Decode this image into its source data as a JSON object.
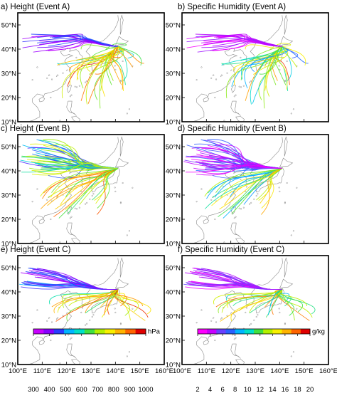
{
  "panels": [
    {
      "id": "a",
      "title": "a) Height (Event A)",
      "variable": "height",
      "event": "A"
    },
    {
      "id": "b",
      "title": "b) Specific Humidity (Event A)",
      "variable": "humidity",
      "event": "A"
    },
    {
      "id": "c",
      "title": "c) Height (Event B)",
      "variable": "height",
      "event": "B"
    },
    {
      "id": "d",
      "title": "d) Specific Humidity (Event B)",
      "variable": "humidity",
      "event": "B"
    },
    {
      "id": "e",
      "title": "e) Height (Event C)",
      "variable": "height",
      "event": "C"
    },
    {
      "id": "f",
      "title": "f) Specific Humidity (Event C)",
      "variable": "humidity",
      "event": "C"
    }
  ],
  "map": {
    "lon_range": [
      100,
      160
    ],
    "lat_range": [
      10,
      55
    ],
    "lon_tick_labels": [
      "100°E",
      "110°E",
      "120°E",
      "130°E",
      "140°E",
      "150°E",
      "160°E"
    ],
    "lat_tick_labels": [
      "10°N",
      "20°N",
      "30°N",
      "40°N",
      "50°N"
    ],
    "target_point": {
      "lon": 141,
      "lat": 41
    }
  },
  "colorbars": {
    "height": {
      "unit": "hPa",
      "tick_labels": [
        "300",
        "400",
        "500",
        "600",
        "700",
        "800",
        "900",
        "1000"
      ],
      "range": [
        300,
        1000
      ],
      "colors": [
        "#c800ff",
        "#8800ff",
        "#2a3cff",
        "#00b4ff",
        "#00e0c8",
        "#40e040",
        "#b4f000",
        "#f8f000",
        "#ffb400",
        "#ff6400",
        "#e00000"
      ]
    },
    "humidity": {
      "unit": "g/kg",
      "tick_labels": [
        "2",
        "4",
        "6",
        "8",
        "10",
        "12",
        "14",
        "16",
        "18",
        "20"
      ],
      "range": [
        2,
        20
      ],
      "colors": [
        "#ff00ff",
        "#c800ff",
        "#6a40ff",
        "#2a60ff",
        "#00b4ff",
        "#00e0c8",
        "#40e040",
        "#b4f000",
        "#f8f000",
        "#ffb400",
        "#ff6400",
        "#e00000"
      ]
    }
  }
}
